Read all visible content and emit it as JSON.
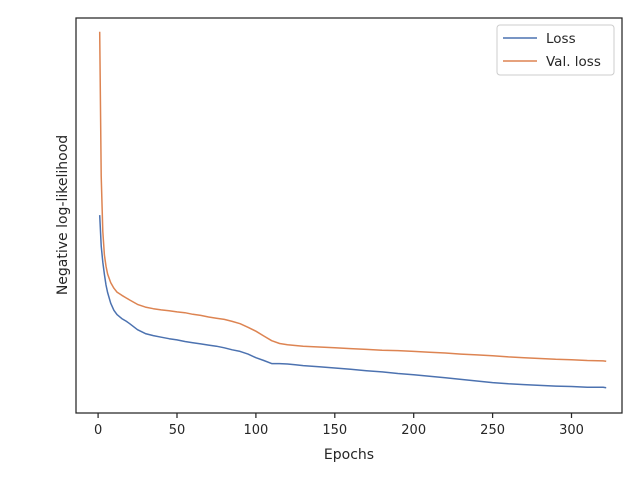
{
  "chart_data": {
    "type": "line",
    "xlabel": "Epochs",
    "ylabel": "Negative log-likelihood",
    "xlim": [
      -14,
      332
    ],
    "ylim": [
      0,
      100
    ],
    "y_tick_labels_shown": false,
    "x_ticks": [
      0,
      50,
      100,
      150,
      200,
      250,
      300
    ],
    "grid": false,
    "legend_placement": "top-right",
    "series": [
      {
        "name": "Loss",
        "color": "#4c72b0",
        "x": [
          1,
          2,
          3,
          4,
          5,
          6,
          8,
          10,
          12,
          15,
          18,
          20,
          25,
          30,
          35,
          40,
          45,
          50,
          55,
          60,
          65,
          70,
          75,
          80,
          85,
          90,
          95,
          100,
          105,
          110,
          115,
          120,
          125,
          130,
          140,
          150,
          160,
          170,
          180,
          190,
          200,
          210,
          220,
          230,
          240,
          250,
          260,
          270,
          280,
          290,
          300,
          310,
          320,
          322
        ],
        "values": [
          50.1,
          42.3,
          38.2,
          35.1,
          32.4,
          30.5,
          27.8,
          26.0,
          24.9,
          23.9,
          23.2,
          22.6,
          21.1,
          20.1,
          19.6,
          19.2,
          18.8,
          18.5,
          18.1,
          17.8,
          17.5,
          17.2,
          16.9,
          16.5,
          16.0,
          15.6,
          14.9,
          14.0,
          13.3,
          12.5,
          12.5,
          12.4,
          12.2,
          12.0,
          11.7,
          11.4,
          11.1,
          10.7,
          10.4,
          10.0,
          9.7,
          9.3,
          8.9,
          8.5,
          8.1,
          7.7,
          7.4,
          7.2,
          7.0,
          6.8,
          6.7,
          6.5,
          6.5,
          6.4
        ]
      },
      {
        "name": "Val. loss",
        "color": "#dd8452",
        "x": [
          1,
          2,
          3,
          4,
          5,
          6,
          8,
          10,
          12,
          15,
          18,
          20,
          25,
          30,
          35,
          40,
          45,
          50,
          55,
          60,
          65,
          70,
          75,
          80,
          85,
          90,
          95,
          100,
          105,
          110,
          115,
          120,
          125,
          130,
          140,
          150,
          160,
          170,
          180,
          190,
          200,
          210,
          220,
          230,
          240,
          250,
          260,
          270,
          280,
          290,
          300,
          310,
          320,
          322
        ],
        "values": [
          96.5,
          60.0,
          46.0,
          40.0,
          37.2,
          35.2,
          33.0,
          31.6,
          30.6,
          29.8,
          29.1,
          28.6,
          27.5,
          26.8,
          26.4,
          26.1,
          25.9,
          25.6,
          25.4,
          25.0,
          24.7,
          24.3,
          24.0,
          23.7,
          23.2,
          22.6,
          21.7,
          20.7,
          19.5,
          18.3,
          17.6,
          17.3,
          17.1,
          16.9,
          16.7,
          16.5,
          16.3,
          16.1,
          15.9,
          15.8,
          15.6,
          15.4,
          15.2,
          14.9,
          14.7,
          14.5,
          14.2,
          14.0,
          13.8,
          13.6,
          13.5,
          13.3,
          13.2,
          13.1
        ]
      }
    ]
  }
}
